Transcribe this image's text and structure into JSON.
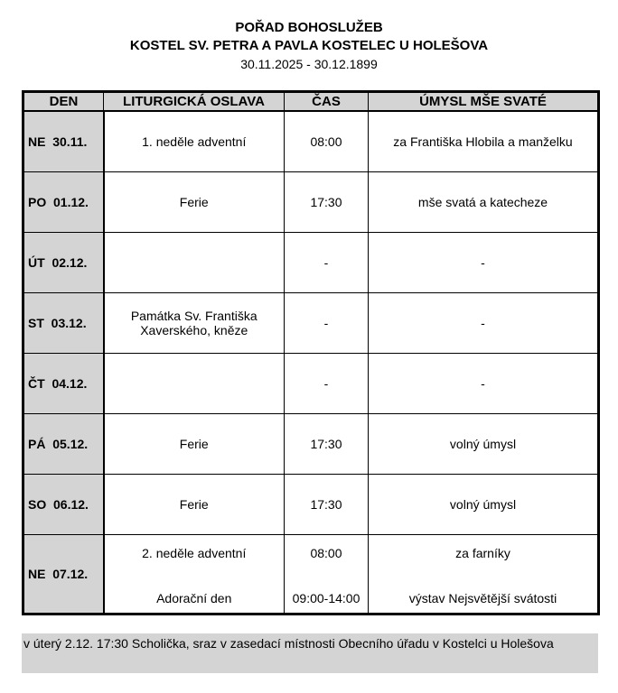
{
  "header": {
    "title": "POŘAD BOHOSLUŽEB",
    "church": "KOSTEL SV. PETRA A PAVLA KOSTELEC U HOLEŠOVA",
    "range": "30.11.2025 - 30.12.1899"
  },
  "columns": [
    "DEN",
    "LITURGICKÁ OSLAVA",
    "ČAS",
    "ÚMYSL MŠE SVATÉ"
  ],
  "rows": [
    {
      "day": "NE  30.11.",
      "feast": "1. neděle adventní",
      "time": "08:00",
      "intention": "za Františka Hlobila a manželku"
    },
    {
      "day": "PO  01.12.",
      "feast": "Ferie",
      "time": "17:30",
      "intention": "mše svatá a katecheze"
    },
    {
      "day": "ÚT  02.12.",
      "feast": "",
      "time": "-",
      "intention": "-"
    },
    {
      "day": "ST  03.12.",
      "feast": "Památka Sv. Františka Xaverského, kněze",
      "time": "-",
      "intention": "-"
    },
    {
      "day": "ČT  04.12.",
      "feast": "",
      "time": "-",
      "intention": "-"
    },
    {
      "day": "PÁ  05.12.",
      "feast": "Ferie",
      "time": "17:30",
      "intention": "volný úmysl"
    },
    {
      "day": "SO  06.12.",
      "feast": "Ferie",
      "time": "17:30",
      "intention": "volný úmysl"
    },
    {
      "day": "NE  07.12.",
      "feast": "2. neděle adventní",
      "time": "08:00",
      "intention": "za farníky",
      "feast2": "Adorační den",
      "time2": "09:00-14:00",
      "intention2": "výstav Nejsvětější svátosti"
    }
  ],
  "note": "v úterý 2.12. 17:30 Scholička, sraz v zasedací místnosti Obecního úřadu v Kostelci u Holešova"
}
